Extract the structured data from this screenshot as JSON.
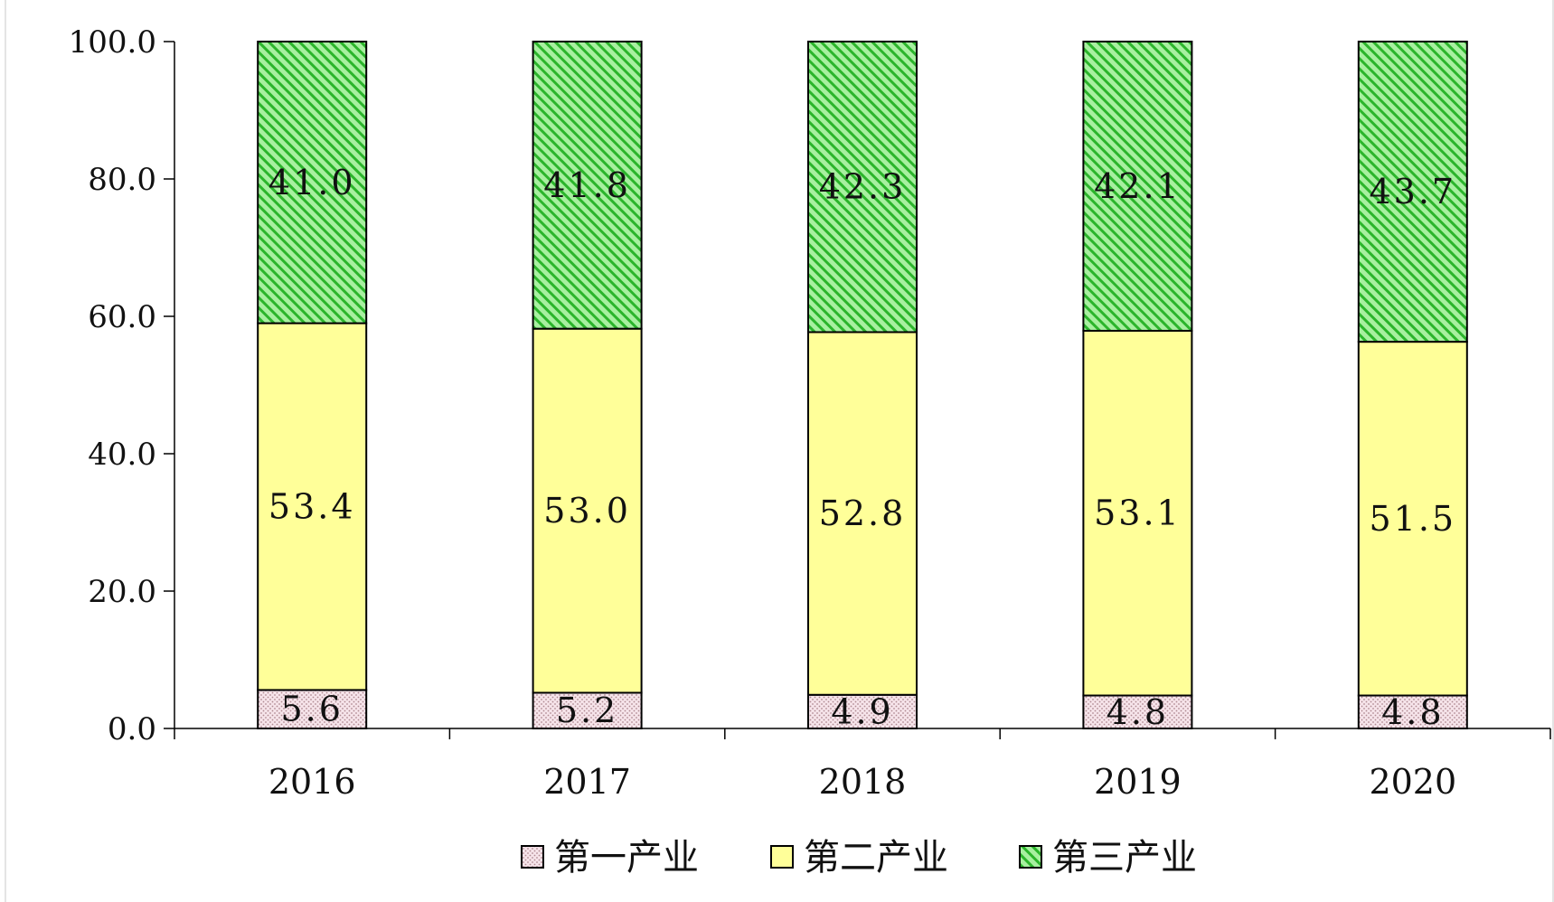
{
  "chart_data": {
    "type": "bar",
    "stacked": true,
    "categories": [
      "2016",
      "2017",
      "2018",
      "2019",
      "2020"
    ],
    "series": [
      {
        "name": "第一产业",
        "values": [
          5.6,
          5.2,
          4.9,
          4.8,
          4.8
        ],
        "labels": [
          "5.6",
          "5.2",
          "4.9",
          "4.8",
          "4.8"
        ],
        "fill": "#f6e4ea",
        "pattern": "dots",
        "pattern_color": "#b08a93"
      },
      {
        "name": "第二产业",
        "values": [
          53.4,
          53.0,
          52.8,
          53.1,
          51.5
        ],
        "labels": [
          "53.4",
          "53.0",
          "52.8",
          "53.1",
          "51.5"
        ],
        "fill": "#ffff99",
        "pattern": "none",
        "pattern_color": "#ffff99"
      },
      {
        "name": "第三产业",
        "values": [
          41.0,
          41.8,
          42.3,
          42.1,
          43.7
        ],
        "labels": [
          "41.0",
          "41.8",
          "42.3",
          "42.1",
          "43.7"
        ],
        "fill": "#a8f0a0",
        "pattern": "diagonal",
        "pattern_color": "#2bb52b"
      }
    ],
    "ylim": [
      0,
      100
    ],
    "yticks": [
      0,
      20,
      40,
      60,
      80,
      100
    ],
    "ytick_labels": [
      "0.0",
      "20.0",
      "40.0",
      "60.0",
      "80.0",
      "100.0"
    ],
    "title": "",
    "xlabel": "",
    "ylabel": "",
    "grid": false,
    "legend_position": "bottom"
  }
}
